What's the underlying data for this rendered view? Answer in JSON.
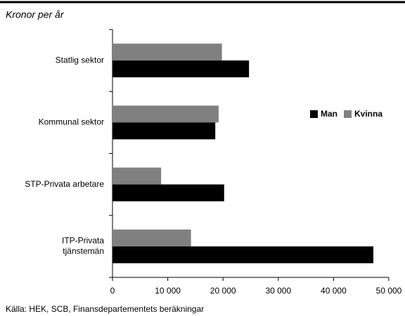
{
  "chart_data": {
    "type": "bar",
    "orientation": "horizontal",
    "title": "Kronor per år",
    "source": "Källa: HEK, SCB, Finansdepartementets beräkningar",
    "categories": [
      "Statlig sektor",
      "Kommunal sektor",
      "STP-Privata arbetare",
      "ITP-Privata\ntjänstemän"
    ],
    "series": [
      {
        "name": "Man",
        "color": "#000000",
        "values": [
          24700,
          18600,
          20200,
          47200
        ]
      },
      {
        "name": "Kvinna",
        "color": "#808080",
        "values": [
          19800,
          19200,
          8800,
          14200
        ]
      }
    ],
    "xlim": [
      0,
      50000
    ],
    "xticks": [
      0,
      {
        "value": 10000,
        "label": "10 000"
      },
      {
        "value": 20000,
        "label": "20 000"
      },
      {
        "value": 30000,
        "label": "30 000"
      },
      {
        "value": 40000,
        "label": "40 000"
      },
      {
        "value": 50000,
        "label": "50 000"
      }
    ],
    "legend": "right"
  }
}
